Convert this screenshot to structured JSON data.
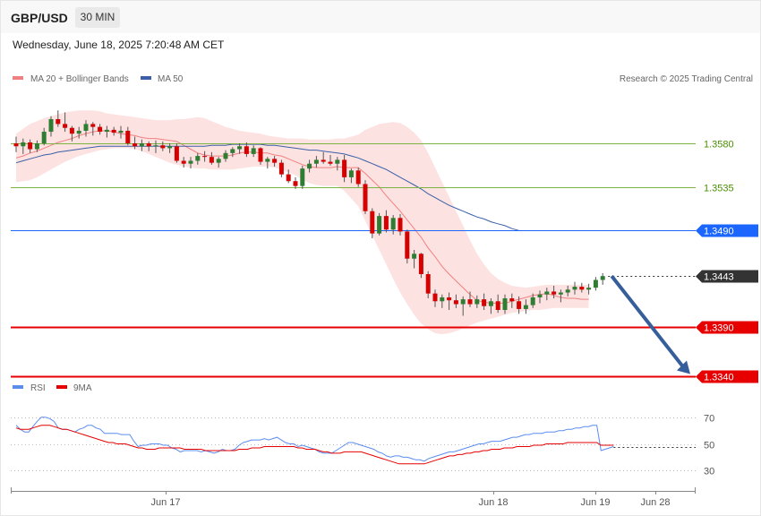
{
  "header": {
    "pair": "GBP/USD",
    "timeframe": "30 MIN",
    "datetime": "Wednesday, June 18, 2025 7:20:48 AM CET"
  },
  "legend": {
    "ma20": "MA 20 + Bollinger Bands",
    "ma50": "MA 50",
    "credit": "Research © 2025 Trading Central",
    "rsi": "RSI",
    "rsi_ma": "9MA"
  },
  "colors": {
    "bollinger_fill": "#fde2e2",
    "ma20": "#f08080",
    "ma50": "#3a5fa8",
    "bull_candle": "#2e7d32",
    "bear_candle": "#d50000",
    "support": "#e60000",
    "pivot": "#1a66ff",
    "resistance": "#7cb342",
    "rsi": "#5b8def",
    "rsi_ma": "#e60000",
    "arrow": "#355e9a"
  },
  "chart_data": [
    {
      "type": "candlestick",
      "y_range": [
        1.3322,
        1.3605
      ],
      "x_labels": [
        "Jun 17",
        "Jun 18",
        "Jun 19",
        "Jun 28"
      ],
      "levels": [
        {
          "value": "1.3580",
          "kind": "resistance"
        },
        {
          "value": "1.3535",
          "kind": "resistance"
        },
        {
          "value": "1.3490",
          "kind": "pivot"
        },
        {
          "value": "1.3443",
          "kind": "last"
        },
        {
          "value": "1.3390",
          "kind": "support"
        },
        {
          "value": "1.3340",
          "kind": "support"
        }
      ],
      "forecast": {
        "from": 1.3443,
        "to": 1.334
      },
      "candles": [
        [
          1.358,
          1.3587,
          1.3571,
          1.3577
        ],
        [
          1.3577,
          1.3585,
          1.3569,
          1.3581
        ],
        [
          1.3581,
          1.3584,
          1.357,
          1.3574
        ],
        [
          1.3574,
          1.3583,
          1.3571,
          1.358
        ],
        [
          1.358,
          1.3596,
          1.3578,
          1.3592
        ],
        [
          1.3592,
          1.3608,
          1.3587,
          1.3605
        ],
        [
          1.3605,
          1.3614,
          1.3597,
          1.36
        ],
        [
          1.36,
          1.3612,
          1.3592,
          1.3596
        ],
        [
          1.3596,
          1.3598,
          1.3582,
          1.359
        ],
        [
          1.359,
          1.3597,
          1.3585,
          1.3593
        ],
        [
          1.3593,
          1.3604,
          1.3587,
          1.36
        ],
        [
          1.36,
          1.3602,
          1.3588,
          1.3597
        ],
        [
          1.3597,
          1.36,
          1.3589,
          1.3592
        ],
        [
          1.3592,
          1.3598,
          1.3586,
          1.3594
        ],
        [
          1.3594,
          1.3597,
          1.3588,
          1.3591
        ],
        [
          1.3591,
          1.3598,
          1.3585,
          1.3593
        ],
        [
          1.3593,
          1.3597,
          1.3578,
          1.358
        ],
        [
          1.358,
          1.3587,
          1.3574,
          1.3577
        ],
        [
          1.3577,
          1.3584,
          1.3572,
          1.358
        ],
        [
          1.358,
          1.3582,
          1.3572,
          1.3577
        ],
        [
          1.3577,
          1.3583,
          1.357,
          1.3578
        ],
        [
          1.3578,
          1.3582,
          1.3572,
          1.3575
        ],
        [
          1.3575,
          1.358,
          1.357,
          1.3577
        ],
        [
          1.3577,
          1.358,
          1.356,
          1.3562
        ],
        [
          1.3562,
          1.3566,
          1.3555,
          1.3559
        ],
        [
          1.3559,
          1.3566,
          1.3554,
          1.3562
        ],
        [
          1.3562,
          1.357,
          1.3558,
          1.3567
        ],
        [
          1.3567,
          1.3572,
          1.3561,
          1.3566
        ],
        [
          1.3566,
          1.3571,
          1.3558,
          1.356
        ],
        [
          1.356,
          1.3566,
          1.3555,
          1.3564
        ],
        [
          1.3564,
          1.3573,
          1.3561,
          1.357
        ],
        [
          1.357,
          1.3576,
          1.3566,
          1.3574
        ],
        [
          1.3574,
          1.358,
          1.3569,
          1.3577
        ],
        [
          1.3577,
          1.3581,
          1.3566,
          1.3569
        ],
        [
          1.3569,
          1.3578,
          1.3566,
          1.3575
        ],
        [
          1.3575,
          1.3576,
          1.3558,
          1.3561
        ],
        [
          1.3561,
          1.3566,
          1.3554,
          1.3564
        ],
        [
          1.3564,
          1.3567,
          1.3556,
          1.356
        ],
        [
          1.356,
          1.3563,
          1.3545,
          1.3548
        ],
        [
          1.3548,
          1.3553,
          1.3539,
          1.3541
        ],
        [
          1.3541,
          1.3545,
          1.3533,
          1.3536
        ],
        [
          1.3536,
          1.3557,
          1.3533,
          1.3554
        ],
        [
          1.3554,
          1.3563,
          1.355,
          1.3559
        ],
        [
          1.3559,
          1.3567,
          1.3555,
          1.3563
        ],
        [
          1.3563,
          1.3571,
          1.3559,
          1.3561
        ],
        [
          1.3561,
          1.3568,
          1.3557,
          1.3559
        ],
        [
          1.3559,
          1.3566,
          1.3552,
          1.3563
        ],
        [
          1.3563,
          1.3568,
          1.354,
          1.3545
        ],
        [
          1.3545,
          1.3554,
          1.3539,
          1.3552
        ],
        [
          1.3552,
          1.3555,
          1.3535,
          1.3538
        ],
        [
          1.3538,
          1.3542,
          1.3507,
          1.351
        ],
        [
          1.351,
          1.3513,
          1.3482,
          1.3487
        ],
        [
          1.3487,
          1.3508,
          1.3485,
          1.3505
        ],
        [
          1.3505,
          1.3511,
          1.3488,
          1.3491
        ],
        [
          1.3491,
          1.3506,
          1.3486,
          1.3503
        ],
        [
          1.3503,
          1.3507,
          1.3485,
          1.3489
        ],
        [
          1.3489,
          1.3491,
          1.3456,
          1.3461
        ],
        [
          1.3461,
          1.347,
          1.3451,
          1.3466
        ],
        [
          1.3466,
          1.3467,
          1.3441,
          1.3445
        ],
        [
          1.3445,
          1.3448,
          1.342,
          1.3425
        ],
        [
          1.3425,
          1.3429,
          1.3411,
          1.3417
        ],
        [
          1.3417,
          1.3424,
          1.341,
          1.3421
        ],
        [
          1.3421,
          1.3426,
          1.3408,
          1.3418
        ],
        [
          1.3418,
          1.3424,
          1.341,
          1.3414
        ],
        [
          1.3414,
          1.3422,
          1.3402,
          1.3419
        ],
        [
          1.3419,
          1.3427,
          1.3411,
          1.3414
        ],
        [
          1.3414,
          1.3423,
          1.341,
          1.3419
        ],
        [
          1.3419,
          1.3425,
          1.3408,
          1.3412
        ],
        [
          1.3412,
          1.342,
          1.3404,
          1.3417
        ],
        [
          1.3417,
          1.3424,
          1.3405,
          1.3408
        ],
        [
          1.3408,
          1.3424,
          1.3404,
          1.342
        ],
        [
          1.342,
          1.3425,
          1.341,
          1.3417
        ],
        [
          1.3417,
          1.3422,
          1.3404,
          1.3409
        ],
        [
          1.3409,
          1.3419,
          1.3404,
          1.3413
        ],
        [
          1.3413,
          1.3425,
          1.341,
          1.3421
        ],
        [
          1.3421,
          1.3428,
          1.3415,
          1.3424
        ],
        [
          1.3424,
          1.3431,
          1.3418,
          1.3427
        ],
        [
          1.3427,
          1.3433,
          1.342,
          1.3424
        ],
        [
          1.3424,
          1.3429,
          1.3416,
          1.3426
        ],
        [
          1.3426,
          1.3433,
          1.3422,
          1.3429
        ],
        [
          1.3429,
          1.3437,
          1.3424,
          1.3432
        ],
        [
          1.3432,
          1.3436,
          1.3426,
          1.3429
        ],
        [
          1.3429,
          1.3435,
          1.3424,
          1.3431
        ],
        [
          1.3431,
          1.3442,
          1.3428,
          1.3439
        ],
        [
          1.3439,
          1.3446,
          1.3434,
          1.3443
        ]
      ],
      "ma20": [
        1.3565,
        1.3567,
        1.357,
        1.3572,
        1.3575,
        1.3578,
        1.3581,
        1.3583,
        1.3585,
        1.3588,
        1.359,
        1.3592,
        1.3593,
        1.3593,
        1.3592,
        1.359,
        1.3589,
        1.3588,
        1.3586,
        1.3585,
        1.3585,
        1.3584,
        1.3583,
        1.3582,
        1.3578,
        1.3574,
        1.357,
        1.3568,
        1.3567,
        1.3567,
        1.3567,
        1.3568,
        1.357,
        1.3571,
        1.3571,
        1.357,
        1.357,
        1.3568,
        1.3567,
        1.3564,
        1.3561,
        1.3558,
        1.3556,
        1.3555,
        1.3555,
        1.3555,
        1.3556,
        1.3555,
        1.3555,
        1.3555,
        1.3549,
        1.3542,
        1.3535,
        1.3526,
        1.3518,
        1.351,
        1.3501,
        1.3492,
        1.3483,
        1.3472,
        1.3463,
        1.3453,
        1.3445,
        1.3438,
        1.3431,
        1.3424,
        1.3418,
        1.3416,
        1.3415,
        1.3415,
        1.3415,
        1.3417,
        1.3419,
        1.3421,
        1.3423,
        1.3424,
        1.3425,
        1.3423,
        1.3421,
        1.342,
        1.342,
        1.3419,
        1.3419
      ],
      "bb_upper": [
        1.359,
        1.3595,
        1.36,
        1.3603,
        1.3606,
        1.3608,
        1.361,
        1.3612,
        1.3613,
        1.3614,
        1.3614,
        1.3614,
        1.3613,
        1.3611,
        1.361,
        1.3609,
        1.3608,
        1.3607,
        1.3606,
        1.3605,
        1.3604,
        1.3604,
        1.3604,
        1.3605,
        1.3605,
        1.3606,
        1.3607,
        1.3606,
        1.3603,
        1.36,
        1.3597,
        1.3595,
        1.3593,
        1.3592,
        1.3591,
        1.359,
        1.3588,
        1.3587,
        1.3586,
        1.3585,
        1.3585,
        1.3585,
        1.3584,
        1.3584,
        1.3584,
        1.3584,
        1.3585,
        1.3585,
        1.3587,
        1.3589,
        1.3594,
        1.3597,
        1.36,
        1.3601,
        1.3602,
        1.3601,
        1.3597,
        1.3591,
        1.3583,
        1.357,
        1.3555,
        1.354,
        1.3525,
        1.351,
        1.3495,
        1.348,
        1.3466,
        1.3455,
        1.3446,
        1.344,
        1.3436,
        1.3433,
        1.3432,
        1.3431,
        1.3432,
        1.3433,
        1.3434,
        1.3434,
        1.3434,
        1.3434,
        1.3434,
        1.3434,
        1.3434
      ],
      "bb_lower": [
        1.354,
        1.3541,
        1.3542,
        1.3545,
        1.3549,
        1.3553,
        1.3557,
        1.3561,
        1.3564,
        1.3567,
        1.3569,
        1.3571,
        1.3573,
        1.3574,
        1.3575,
        1.3575,
        1.3575,
        1.3574,
        1.3572,
        1.3569,
        1.3566,
        1.3563,
        1.356,
        1.3558,
        1.3556,
        1.3555,
        1.3554,
        1.3554,
        1.3553,
        1.3553,
        1.3553,
        1.3553,
        1.3554,
        1.3555,
        1.3556,
        1.3556,
        1.3556,
        1.3555,
        1.3553,
        1.355,
        1.3547,
        1.3543,
        1.3539,
        1.3537,
        1.3536,
        1.3536,
        1.3536,
        1.3531,
        1.3523,
        1.3515,
        1.35,
        1.3485,
        1.347,
        1.3455,
        1.344,
        1.3426,
        1.3414,
        1.3403,
        1.3394,
        1.3388,
        1.3384,
        1.3383,
        1.3384,
        1.3386,
        1.3389,
        1.3392,
        1.3395,
        1.3397,
        1.3399,
        1.3401,
        1.3403,
        1.3405,
        1.3406,
        1.3407,
        1.3408,
        1.3408,
        1.3409,
        1.341,
        1.341,
        1.341,
        1.341,
        1.341,
        1.341
      ],
      "ma50": [
        1.356,
        1.3562,
        1.3564,
        1.3566,
        1.3568,
        1.3569,
        1.3571,
        1.3572,
        1.3573,
        1.3574,
        1.3575,
        1.3576,
        1.3577,
        1.3577,
        1.3577,
        1.3577,
        1.3577,
        1.3577,
        1.3577,
        1.3577,
        1.3577,
        1.3577,
        1.3577,
        1.3577,
        1.3577,
        1.3577,
        1.3577,
        1.3577,
        1.3578,
        1.3578,
        1.3578,
        1.3579,
        1.3579,
        1.3579,
        1.3579,
        1.3579,
        1.3578,
        1.3578,
        1.3577,
        1.3576,
        1.3575,
        1.3574,
        1.3573,
        1.3573,
        1.3572,
        1.3571,
        1.357,
        1.3569,
        1.3567,
        1.3565,
        1.3562,
        1.3559,
        1.3556,
        1.3553,
        1.3549,
        1.3545,
        1.3541,
        1.3537,
        1.3533,
        1.3528,
        1.3524,
        1.352,
        1.3516,
        1.3513,
        1.351,
        1.3507,
        1.3504,
        1.3502,
        1.3499,
        1.3497,
        1.3495,
        1.3492,
        1.349
      ]
    },
    {
      "type": "line",
      "title": "RSI",
      "y_range": [
        16,
        80
      ],
      "y_ticks": [
        "30",
        "50",
        "70"
      ],
      "series": [
        {
          "name": "RSI",
          "values": [
            64,
            61,
            59,
            59,
            63,
            67,
            70,
            70,
            69,
            67,
            62,
            61,
            61,
            60,
            59,
            61,
            62,
            64,
            64,
            62,
            61,
            58,
            58,
            58,
            58,
            57,
            57,
            57,
            52,
            48,
            49,
            49,
            50,
            50,
            50,
            49,
            49,
            47,
            46,
            44,
            45,
            45,
            45,
            45,
            44,
            45,
            44,
            43,
            44,
            46,
            45,
            45,
            46,
            49,
            51,
            52,
            53,
            53,
            53,
            54,
            53,
            54,
            55,
            53,
            51,
            50,
            50,
            48,
            49,
            48,
            47,
            46,
            44,
            43,
            43,
            43,
            45,
            47,
            49,
            51,
            51,
            50,
            49,
            48,
            47,
            46,
            44,
            43,
            41,
            40,
            41,
            41,
            40,
            40,
            39,
            38,
            38,
            37,
            39,
            40,
            41,
            42,
            43,
            44,
            44,
            45,
            46,
            47,
            48,
            49,
            50,
            50,
            51,
            52,
            52,
            52,
            53,
            54,
            55,
            55,
            56,
            57,
            57,
            58,
            58,
            58,
            59,
            59,
            59,
            60,
            60,
            61,
            61,
            62,
            62,
            63,
            63,
            64,
            64,
            45,
            46,
            47,
            48
          ]
        },
        {
          "name": "9MA",
          "values": [
            62,
            61,
            61,
            61,
            62,
            63,
            64,
            64,
            64,
            63,
            62,
            61,
            61,
            60,
            59,
            58,
            57,
            56,
            55,
            54,
            53,
            52,
            51,
            51,
            50,
            50,
            50,
            49,
            48,
            47,
            47,
            46,
            46,
            46,
            47,
            47,
            47,
            47,
            47,
            47,
            46,
            46,
            46,
            46,
            46,
            45,
            45,
            45,
            45,
            45,
            45,
            45,
            45,
            46,
            46,
            46,
            47,
            47,
            47,
            48,
            48,
            48,
            48,
            48,
            48,
            48,
            48,
            47,
            47,
            46,
            46,
            46,
            45,
            44,
            44,
            43,
            43,
            43,
            44,
            44,
            44,
            44,
            44,
            43,
            42,
            41,
            40,
            39,
            38,
            37,
            36,
            35,
            35,
            35,
            35,
            35,
            35,
            35,
            36,
            37,
            38,
            39,
            40,
            41,
            41,
            42,
            42,
            43,
            43,
            44,
            44,
            45,
            45,
            46,
            46,
            46,
            47,
            47,
            47,
            48,
            48,
            48,
            48,
            49,
            49,
            49,
            50,
            50,
            50,
            50,
            50,
            51,
            51,
            51,
            51,
            51,
            51,
            51,
            51,
            49,
            49,
            49,
            49
          ]
        }
      ]
    }
  ]
}
